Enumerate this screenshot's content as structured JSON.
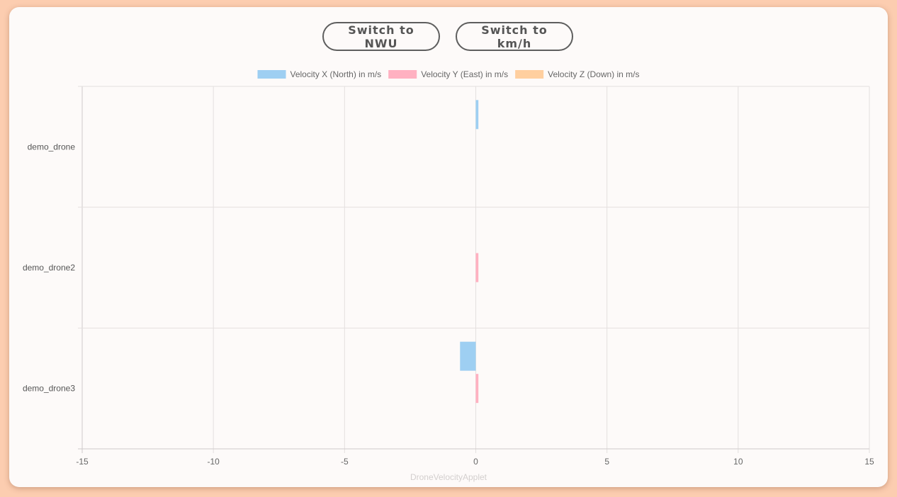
{
  "controls": {
    "frame_button_label": "Switch to NWU",
    "units_button_label": "Switch to km/h"
  },
  "footer": {
    "applet_name": "DroneVelocityApplet"
  },
  "colors": {
    "page_background": "#fccdb0",
    "card_background": "#fdfaf9",
    "grid": "#e4e0df",
    "axis_text": "#666666"
  },
  "chart_data": {
    "type": "bar",
    "orientation": "horizontal",
    "categories": [
      "demo_drone",
      "demo_drone2",
      "demo_drone3"
    ],
    "series": [
      {
        "name": "Velocity X (North) in m/s",
        "color": "#9ecff2",
        "values": [
          0.1,
          0,
          -0.6
        ]
      },
      {
        "name": "Velocity Y (East) in m/s",
        "color": "#ffb1c1",
        "values": [
          0,
          0.1,
          0.1
        ]
      },
      {
        "name": "Velocity Z (Down) in m/s",
        "color": "#ffcf9f",
        "values": [
          0,
          0,
          0
        ]
      }
    ],
    "xlim": [
      -15,
      15
    ],
    "xticks": [
      -15,
      -10,
      -5,
      0,
      5,
      10,
      15
    ],
    "grid": true,
    "legend_position": "top",
    "title": "",
    "xlabel": "",
    "ylabel": ""
  }
}
